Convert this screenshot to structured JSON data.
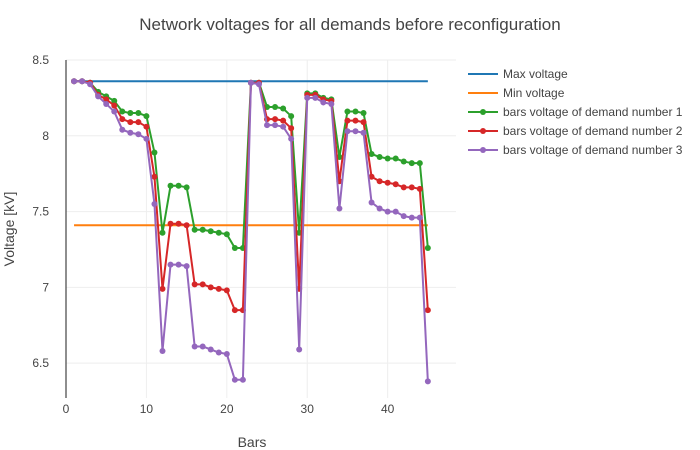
{
  "chart_data": {
    "type": "line",
    "title": "Network voltages for all demands before reconfiguration",
    "xlabel": "Bars",
    "ylabel": "Voltage [kV]",
    "xlim": [
      0,
      48.5
    ],
    "ylim": [
      6.27,
      8.5
    ],
    "x_ticks": [
      0,
      10,
      20,
      30,
      40
    ],
    "y_ticks": [
      6.5,
      7,
      7.5,
      8,
      8.5
    ],
    "grid": true,
    "legend_position": "right",
    "x": [
      1,
      2,
      3,
      4,
      5,
      6,
      7,
      8,
      9,
      10,
      11,
      12,
      13,
      14,
      15,
      16,
      17,
      18,
      19,
      20,
      21,
      22,
      23,
      24,
      25,
      26,
      27,
      28,
      29,
      30,
      31,
      32,
      33,
      34,
      35,
      36,
      37,
      38,
      39,
      40,
      41,
      42,
      43,
      44,
      45
    ],
    "series": [
      {
        "name": "Max voltage",
        "color": "#1f77b4",
        "markers": false,
        "x": [
          1,
          45
        ],
        "values": [
          8.36,
          8.36
        ]
      },
      {
        "name": "Min voltage",
        "color": "#ff7f0e",
        "markers": false,
        "x": [
          1,
          45
        ],
        "values": [
          7.41,
          7.41
        ]
      },
      {
        "name": "bars voltage of demand number 1",
        "color": "#2ca02c",
        "markers": true,
        "values": [
          8.36,
          8.36,
          8.35,
          8.29,
          8.26,
          8.23,
          8.16,
          8.15,
          8.15,
          8.13,
          7.89,
          7.36,
          7.67,
          7.67,
          7.66,
          7.38,
          7.38,
          7.37,
          7.36,
          7.35,
          7.26,
          7.26,
          8.35,
          8.35,
          8.19,
          8.19,
          8.18,
          8.13,
          7.36,
          8.28,
          8.28,
          8.25,
          8.24,
          7.86,
          8.16,
          8.16,
          8.15,
          7.88,
          7.86,
          7.85,
          7.85,
          7.83,
          7.82,
          7.82,
          7.26
        ]
      },
      {
        "name": "bars voltage of demand number 2",
        "color": "#d62728",
        "markers": true,
        "values": [
          8.36,
          8.36,
          8.35,
          8.27,
          8.24,
          8.2,
          8.11,
          8.09,
          8.09,
          8.06,
          7.73,
          6.99,
          7.42,
          7.42,
          7.41,
          7.02,
          7.02,
          7.0,
          6.99,
          6.98,
          6.85,
          6.85,
          8.35,
          8.35,
          8.11,
          8.11,
          8.1,
          8.05,
          6.99,
          8.27,
          8.27,
          8.24,
          8.23,
          7.7,
          8.1,
          8.1,
          8.09,
          7.73,
          7.7,
          7.69,
          7.68,
          7.66,
          7.66,
          7.65,
          6.85
        ]
      },
      {
        "name": "bars voltage of demand number 3",
        "color": "#9467bd",
        "markers": true,
        "values": [
          8.36,
          8.36,
          8.34,
          8.26,
          8.21,
          8.16,
          8.04,
          8.02,
          8.01,
          7.98,
          7.55,
          6.58,
          7.15,
          7.15,
          7.14,
          6.61,
          6.61,
          6.59,
          6.57,
          6.56,
          6.39,
          6.39,
          8.35,
          8.34,
          8.07,
          8.07,
          8.06,
          7.98,
          6.59,
          8.25,
          8.25,
          8.22,
          8.21,
          7.52,
          8.03,
          8.03,
          8.02,
          7.56,
          7.52,
          7.5,
          7.5,
          7.47,
          7.46,
          7.46,
          6.38
        ]
      }
    ]
  }
}
